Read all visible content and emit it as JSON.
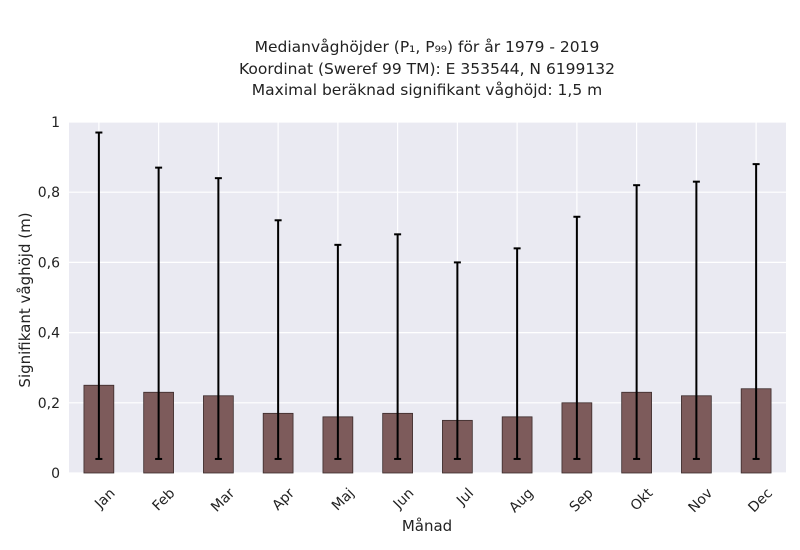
{
  "chart_data": {
    "type": "bar",
    "title_lines": [
      "Medianvåghöjder (P₁, P₉₉) för år 1979 - 2019",
      "Koordinat (Sweref 99 TM): E 353544, N 6199132",
      "Maximal beräknad signifikant våghöjd: 1,5 m"
    ],
    "xlabel": "Månad",
    "ylabel": "Signifikant våghöjd (m)",
    "categories": [
      "Jan",
      "Feb",
      "Mar",
      "Apr",
      "Maj",
      "Jun",
      "Jul",
      "Aug",
      "Sep",
      "Okt",
      "Nov",
      "Dec"
    ],
    "values": [
      0.25,
      0.23,
      0.22,
      0.17,
      0.16,
      0.17,
      0.15,
      0.16,
      0.2,
      0.23,
      0.22,
      0.24
    ],
    "error_low": [
      0.04,
      0.04,
      0.04,
      0.04,
      0.04,
      0.04,
      0.04,
      0.04,
      0.04,
      0.04,
      0.04,
      0.04
    ],
    "error_high": [
      0.97,
      0.87,
      0.84,
      0.72,
      0.65,
      0.68,
      0.6,
      0.64,
      0.73,
      0.82,
      0.83,
      0.88
    ],
    "ylim": [
      0,
      1
    ],
    "yticks": [
      0,
      0.2,
      0.4,
      0.6,
      0.8,
      1
    ],
    "ytick_labels": [
      "0",
      "0,2",
      "0,4",
      "0,6",
      "0,8",
      "1"
    ],
    "grid": true,
    "legend": "none",
    "colors": {
      "bar": "#7d5b5b",
      "bar_edge": "#3a2a2a",
      "errorbar": "#000000",
      "plot_bg": "#eaeaf2",
      "grid": "#ffffff"
    }
  }
}
